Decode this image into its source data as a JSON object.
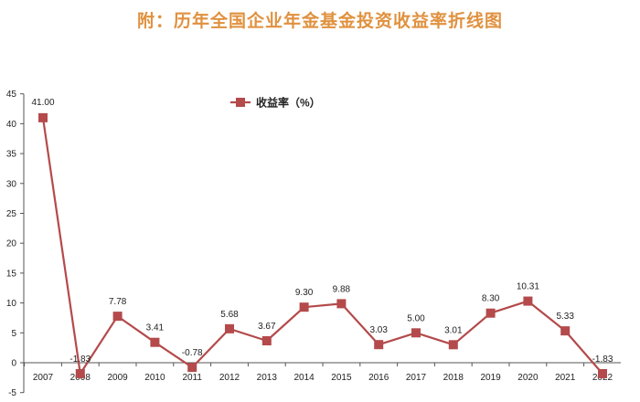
{
  "chart_data": {
    "type": "line",
    "title": "附：历年全国企业年金基金投资收益率折线图",
    "legend_label": "收益率（%）",
    "legend_position": "top-center",
    "categories": [
      "2007",
      "2008",
      "2009",
      "2010",
      "2011",
      "2012",
      "2013",
      "2014",
      "2015",
      "2016",
      "2017",
      "2018",
      "2019",
      "2020",
      "2021",
      "2022"
    ],
    "series": [
      {
        "name": "收益率（%）",
        "values": [
          41.0,
          -1.83,
          7.78,
          3.41,
          -0.78,
          5.68,
          3.67,
          9.3,
          9.88,
          3.03,
          5.0,
          3.01,
          8.3,
          10.31,
          5.33,
          -1.83
        ],
        "value_labels": [
          "41.00",
          "-1.83",
          "7.78",
          "3.41",
          "-0.78",
          "5.68",
          "3.67",
          "9.30",
          "9.88",
          "3.03",
          "5.00",
          "3.01",
          "8.30",
          "10.31",
          "5.33",
          "-1.83"
        ]
      }
    ],
    "y_ticks": [
      "-5",
      "0",
      "5",
      "10",
      "15",
      "20",
      "25",
      "30",
      "35",
      "40",
      "45"
    ],
    "ylim": [
      -5,
      45
    ],
    "ytick_step": 5,
    "grid": false,
    "xlabel": "",
    "ylabel": ""
  },
  "colors": {
    "title": "#e0913f",
    "line": "#b44a4b",
    "marker": "#b44a4b",
    "axis": "#555555",
    "text": "#222222"
  }
}
